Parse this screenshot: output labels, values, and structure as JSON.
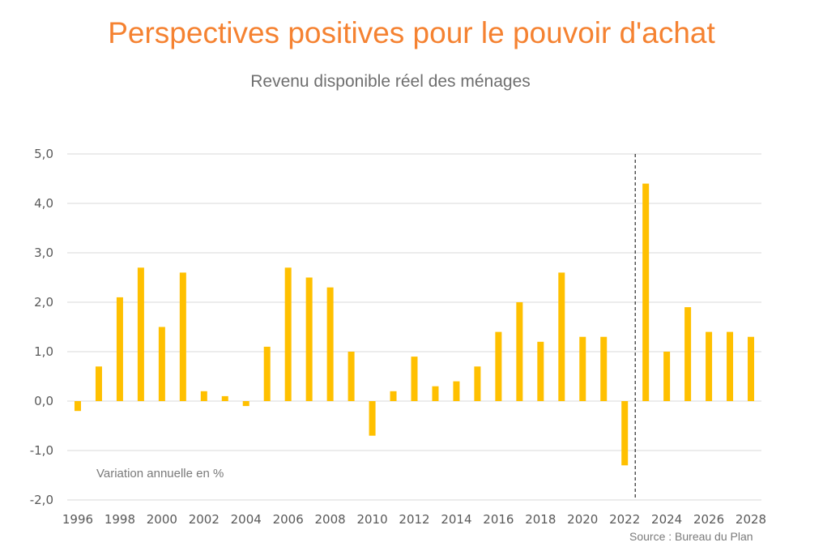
{
  "chart_data": {
    "type": "bar",
    "title": "Perspectives positives pour le pouvoir d'achat",
    "subtitle": "Revenu disponible réel des ménages",
    "xlabel": "",
    "ylabel": "",
    "annotation": "Variation annuelle en %",
    "source": "Source : Bureau du Plan",
    "ylim": [
      -2.0,
      5.0
    ],
    "yticks": [
      "5,0",
      "4,0",
      "3,0",
      "2,0",
      "1,0",
      "0,0",
      "-1,0",
      "-2,0"
    ],
    "ytick_values": [
      5,
      4,
      3,
      2,
      1,
      0,
      -1,
      -2
    ],
    "grid": true,
    "bar_color": "#FFC000",
    "forecast_divider_between": [
      "2022",
      "2023"
    ],
    "categories": [
      "1996",
      "1997",
      "1998",
      "1999",
      "2000",
      "2001",
      "2002",
      "2003",
      "2004",
      "2005",
      "2006",
      "2007",
      "2008",
      "2009",
      "2010",
      "2011",
      "2012",
      "2013",
      "2014",
      "2015",
      "2016",
      "2017",
      "2018",
      "2019",
      "2020",
      "2021",
      "2022",
      "2023",
      "2024",
      "2025",
      "2026",
      "2027",
      "2028"
    ],
    "xtick_labels": [
      "1996",
      "1998",
      "2000",
      "2002",
      "2004",
      "2006",
      "2008",
      "2010",
      "2012",
      "2014",
      "2016",
      "2018",
      "2020",
      "2022",
      "2024",
      "2026",
      "2028"
    ],
    "values": [
      -0.2,
      0.7,
      2.1,
      2.7,
      1.5,
      2.6,
      0.2,
      0.1,
      -0.1,
      1.1,
      2.7,
      2.5,
      2.3,
      1.0,
      -0.7,
      0.2,
      0.9,
      0.3,
      0.4,
      0.7,
      1.4,
      2.0,
      1.2,
      2.6,
      1.3,
      1.3,
      -1.3,
      4.4,
      1.0,
      1.9,
      1.4,
      1.4,
      1.3
    ]
  }
}
